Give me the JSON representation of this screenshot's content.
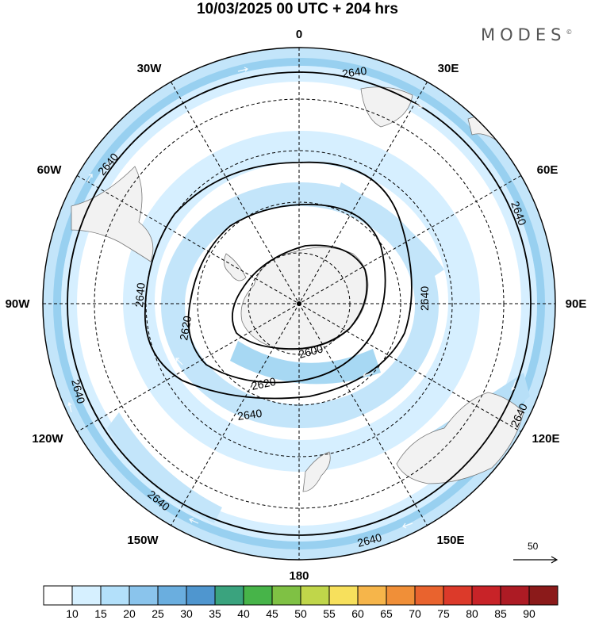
{
  "title": "10/03/2025  00 UTC  + 204 hrs",
  "brand": "MODES",
  "brand_mark": "©",
  "longitude_labels": [
    "0",
    "30E",
    "60E",
    "90E",
    "120E",
    "150E",
    "180",
    "150W",
    "120W",
    "90W",
    "60W",
    "30W"
  ],
  "contour_labels": {
    "outer": [
      "2640",
      "2640",
      "2640",
      "2640",
      "2640",
      "2640"
    ],
    "middle": [
      "2640",
      "2640",
      "2640",
      "2640"
    ],
    "inner": [
      "2620",
      "2620"
    ],
    "core": [
      "2600"
    ]
  },
  "reference_vector": {
    "value": "50",
    "arrow_icon": "arrow-right-icon"
  },
  "colorbar": {
    "ticks": [
      "10",
      "15",
      "20",
      "25",
      "30",
      "35",
      "40",
      "45",
      "50",
      "55",
      "60",
      "65",
      "70",
      "75",
      "80",
      "85",
      "90"
    ],
    "colors": [
      "#ffffff",
      "#d6f0ff",
      "#b3e0fa",
      "#8ac4ec",
      "#6aaedf",
      "#4f96cf",
      "#3aa37e",
      "#47b449",
      "#7fc144",
      "#c0d64a",
      "#f7e05c",
      "#f6b54a",
      "#f08f38",
      "#e9632e",
      "#dc3a2a",
      "#c82328",
      "#ad1b24",
      "#8b1a1a"
    ]
  },
  "colors": {
    "land": "#f2f2f2",
    "coast": "#777777",
    "band_light": "#d6efff",
    "band_mid": "#b7dff7",
    "band_strong": "#8ccbee",
    "contour": "#000000",
    "grid": "#000000"
  }
}
